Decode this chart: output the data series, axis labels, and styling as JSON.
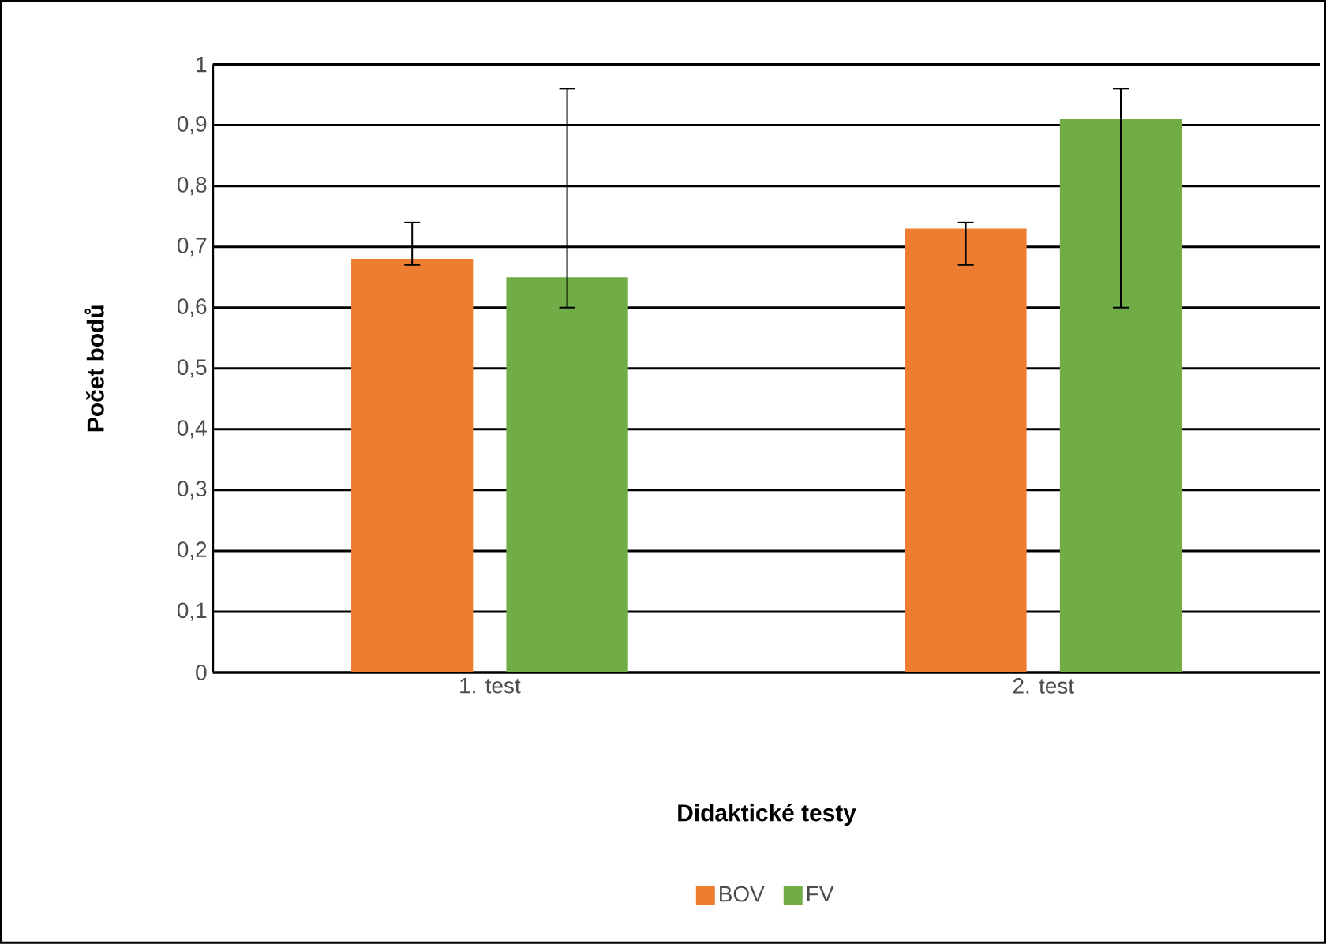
{
  "chart_data": {
    "type": "bar",
    "xlabel": "Didaktické testy",
    "ylabel": "Počet bodů",
    "categories": [
      "1. test",
      "2. test"
    ],
    "series": [
      {
        "name": "BOV",
        "color": "#ed7d31",
        "values": [
          0.68,
          0.73
        ],
        "errors": [
          [
            0.67,
            0.74
          ],
          [
            0.67,
            0.74
          ]
        ]
      },
      {
        "name": "FV",
        "color": "#70ad47",
        "values": [
          0.65,
          0.91
        ],
        "errors": [
          [
            0.6,
            0.96
          ],
          [
            0.6,
            0.96
          ]
        ]
      }
    ],
    "ylim": [
      0,
      1
    ],
    "yticks": [
      0,
      {
        "value": 0.1,
        "label": "0,1"
      },
      {
        "value": 0.2,
        "label": "0,2"
      },
      {
        "value": 0.3,
        "label": "0,3"
      },
      {
        "value": 0.4,
        "label": "0,4"
      },
      {
        "value": 0.5,
        "label": "0,5"
      },
      {
        "value": 0.6,
        "label": "0,6"
      },
      {
        "value": 0.7,
        "label": "0,7"
      },
      {
        "value": 0.8,
        "label": "0,8"
      },
      {
        "value": 0.9,
        "label": "0,9"
      },
      1
    ],
    "grid": "y",
    "legend": "bottom"
  }
}
